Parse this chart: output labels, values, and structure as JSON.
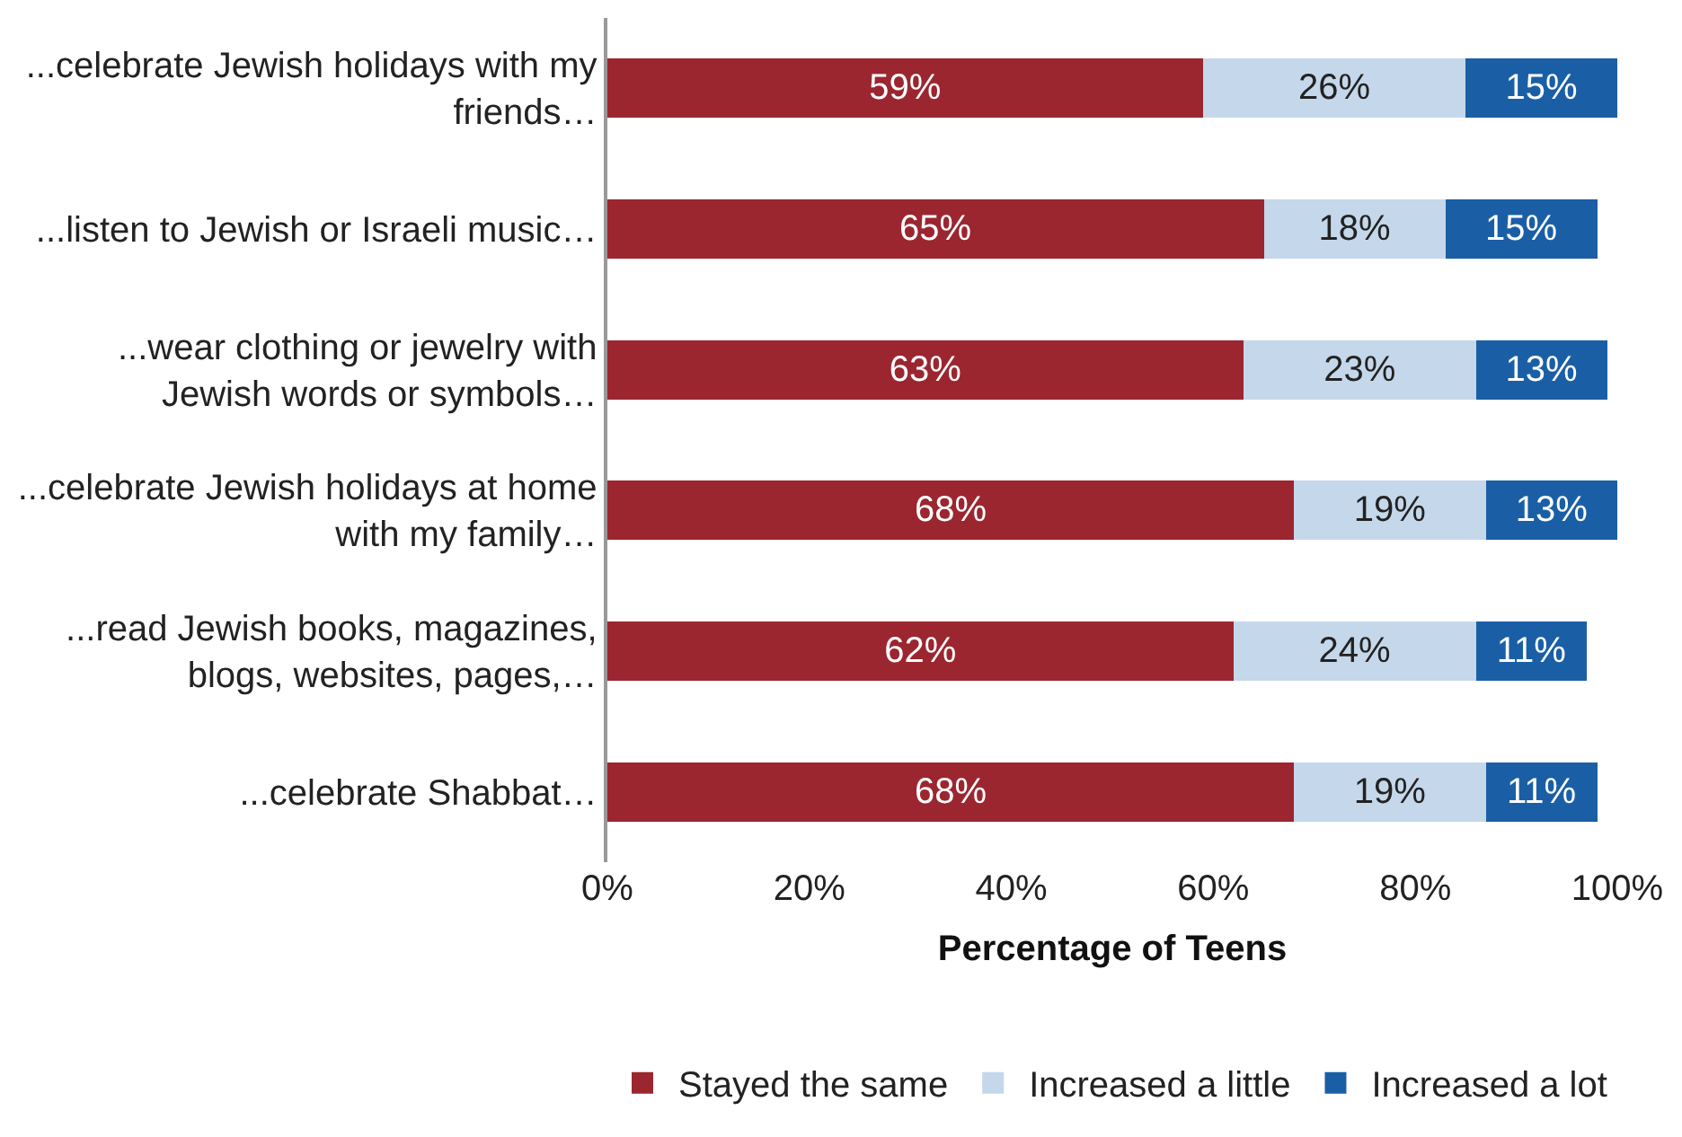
{
  "chart_data": {
    "type": "bar",
    "orientation": "horizontal",
    "stacked": true,
    "categories": [
      "...celebrate Jewish holidays with my friends…",
      "...listen to Jewish or Israeli music…",
      "...wear clothing or jewelry with Jewish words or symbols…",
      "...celebrate Jewish holidays at home with my family…",
      "...read Jewish books, magazines, blogs, websites, pages,…",
      "...celebrate Shabbat…"
    ],
    "series": [
      {
        "name": "Stayed the same",
        "color": "#9b2630",
        "values": [
          59,
          65,
          63,
          68,
          62,
          68
        ],
        "value_labels": [
          "59%",
          "65%",
          "63%",
          "68%",
          "62%",
          "68%"
        ]
      },
      {
        "name": "Increased a little",
        "color": "#c5d7ea",
        "values": [
          26,
          18,
          23,
          19,
          24,
          19
        ],
        "value_labels": [
          "26%",
          "18%",
          "23%",
          "19%",
          "24%",
          "19%"
        ]
      },
      {
        "name": "Increased a lot",
        "color": "#1a5fa6",
        "values": [
          15,
          15,
          13,
          13,
          11,
          11
        ],
        "value_labels": [
          "15%",
          "15%",
          "13%",
          "13%",
          "11%",
          "11%"
        ]
      }
    ],
    "xlim": [
      0,
      100
    ],
    "xticks": [
      {
        "value": 0,
        "label": "0%"
      },
      {
        "value": 20,
        "label": "20%"
      },
      {
        "value": 40,
        "label": "40%"
      },
      {
        "value": 60,
        "label": "60%"
      },
      {
        "value": 80,
        "label": "80%"
      },
      {
        "value": 100,
        "label": "100%"
      }
    ],
    "xlabel": "Percentage of Teens",
    "legend": "bottom"
  }
}
